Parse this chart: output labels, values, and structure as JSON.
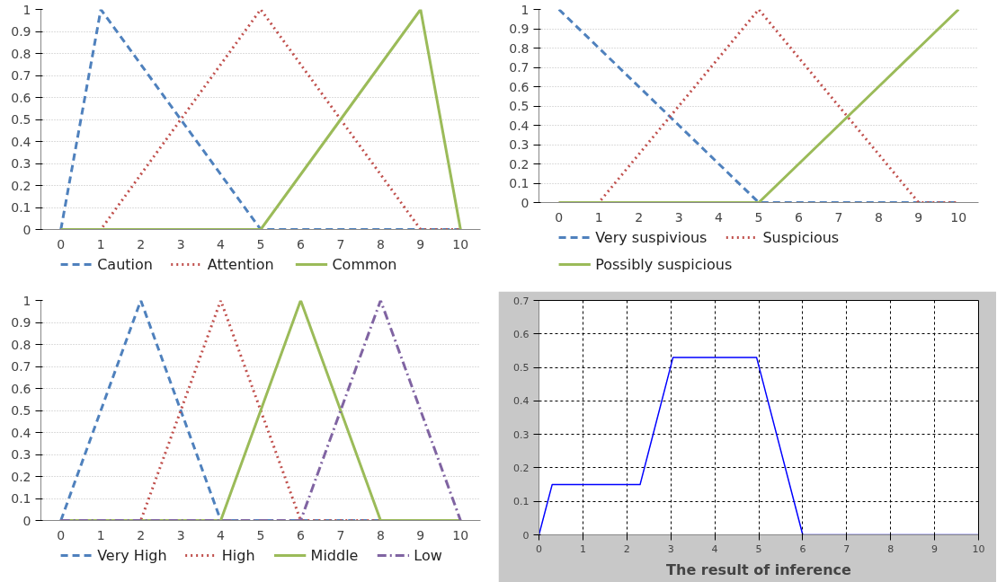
{
  "chart_data": [
    {
      "type": "line",
      "categories": [
        "0",
        "1",
        "2",
        "3",
        "4",
        "5",
        "6",
        "7",
        "8",
        "9",
        "10"
      ],
      "ylim": [
        0,
        1
      ],
      "yticks": [
        0,
        0.1,
        0.2,
        0.3,
        0.4,
        0.5,
        0.6,
        0.7,
        0.8,
        0.9,
        1
      ],
      "grid": "y",
      "legend": "bottom",
      "series": [
        {
          "name": "Caution",
          "color": "#4f81bd",
          "line_style": "dashed",
          "values": [
            0,
            1,
            0.75,
            0.5,
            0.25,
            0,
            0,
            0,
            0,
            0,
            0
          ]
        },
        {
          "name": "Attention",
          "color": "#c0504d",
          "line_style": "dotted",
          "values": [
            0,
            0,
            0.25,
            0.5,
            0.75,
            1,
            0.75,
            0.5,
            0.25,
            0,
            0
          ]
        },
        {
          "name": "Common",
          "color": "#9bbb59",
          "line_style": "solid",
          "values": [
            0,
            0,
            0,
            0,
            0,
            0,
            0.25,
            0.5,
            0.75,
            1,
            0
          ]
        }
      ]
    },
    {
      "type": "line",
      "categories": [
        "0",
        "1",
        "2",
        "3",
        "4",
        "5",
        "6",
        "7",
        "8",
        "9",
        "10"
      ],
      "ylim": [
        0,
        1
      ],
      "yticks": [
        0,
        0.1,
        0.2,
        0.3,
        0.4,
        0.5,
        0.6,
        0.7,
        0.8,
        0.9,
        1
      ],
      "grid": "y",
      "legend": "bottom",
      "series": [
        {
          "name": "Very suspivious",
          "color": "#4f81bd",
          "line_style": "dashed",
          "values": [
            1,
            0.8,
            0.6,
            0.4,
            0.2,
            0,
            0,
            0,
            0,
            0,
            0
          ]
        },
        {
          "name": "Suspicious",
          "color": "#c0504d",
          "line_style": "dotted",
          "values": [
            0,
            0,
            0.25,
            0.5,
            0.75,
            1,
            0.75,
            0.5,
            0.25,
            0,
            0
          ]
        },
        {
          "name": "Possibly suspicious",
          "color": "#9bbb59",
          "line_style": "solid",
          "values": [
            0,
            0,
            0,
            0,
            0,
            0,
            0.2,
            0.4,
            0.6,
            0.8,
            1
          ]
        }
      ]
    },
    {
      "type": "line",
      "categories": [
        "0",
        "1",
        "2",
        "3",
        "4",
        "5",
        "6",
        "7",
        "8",
        "9",
        "10"
      ],
      "ylim": [
        0,
        1
      ],
      "yticks": [
        0,
        0.1,
        0.2,
        0.3,
        0.4,
        0.5,
        0.6,
        0.7,
        0.8,
        0.9,
        1
      ],
      "grid": "y",
      "legend": "bottom",
      "series": [
        {
          "name": "Very High",
          "color": "#4f81bd",
          "line_style": "dashed",
          "values": [
            0,
            0.5,
            1,
            0.5,
            0,
            0,
            0,
            0,
            0,
            0,
            0
          ]
        },
        {
          "name": "High",
          "color": "#c0504d",
          "line_style": "dotted",
          "values": [
            0,
            0,
            0,
            0.5,
            1,
            0.5,
            0,
            0,
            0,
            0,
            0
          ]
        },
        {
          "name": "Middle",
          "color": "#9bbb59",
          "line_style": "solid",
          "values": [
            0,
            0,
            0,
            0,
            0,
            0.5,
            1,
            0.5,
            0,
            0,
            0
          ]
        },
        {
          "name": "Low",
          "color": "#8064a2",
          "line_style": "dashdot",
          "values": [
            0,
            0,
            0,
            0,
            0,
            0,
            0,
            0.5,
            1,
            0.5,
            0
          ]
        }
      ]
    },
    {
      "type": "line",
      "title": "The result of inference",
      "xlim": [
        0,
        10
      ],
      "xticks": [
        0,
        1,
        2,
        3,
        4,
        5,
        6,
        7,
        8,
        9,
        10
      ],
      "ylim": [
        0,
        0.7
      ],
      "yticks": [
        0,
        0.1,
        0.2,
        0.3,
        0.4,
        0.5,
        0.6,
        0.7
      ],
      "grid": true,
      "legend": false,
      "series": [
        {
          "color": "#0000ff",
          "line_style": "solid",
          "x": [
            0,
            0.3,
            2.3,
            3.05,
            4.95,
            6,
            10
          ],
          "values": [
            0,
            0.15,
            0.15,
            0.53,
            0.53,
            0,
            0
          ]
        }
      ]
    }
  ]
}
